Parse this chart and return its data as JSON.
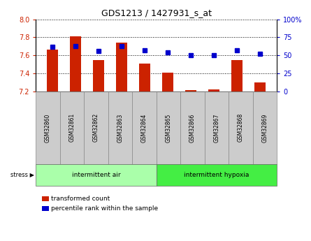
{
  "title": "GDS1213 / 1427931_s_at",
  "samples": [
    "GSM32860",
    "GSM32861",
    "GSM32862",
    "GSM32863",
    "GSM32864",
    "GSM32865",
    "GSM32866",
    "GSM32867",
    "GSM32868",
    "GSM32869"
  ],
  "transformed_count": [
    7.665,
    7.81,
    7.545,
    7.74,
    7.51,
    7.41,
    7.215,
    7.225,
    7.545,
    7.305
  ],
  "percentile_rank": [
    62,
    63,
    56,
    63,
    57,
    54,
    50,
    50,
    57,
    52
  ],
  "ylim_left": [
    7.2,
    8.0
  ],
  "ylim_right": [
    0,
    100
  ],
  "yticks_left": [
    7.2,
    7.4,
    7.6,
    7.8,
    8.0
  ],
  "yticks_right": [
    0,
    25,
    50,
    75,
    100
  ],
  "group1_label": "intermittent air",
  "group2_label": "intermittent hypoxia",
  "stress_label": "stress",
  "legend_bar_label": "transformed count",
  "legend_dot_label": "percentile rank within the sample",
  "bar_color": "#cc2200",
  "dot_color": "#0000cc",
  "bar_bottom": 7.2,
  "group1_color": "#aaffaa",
  "group2_color": "#44ee44",
  "tick_label_bg": "#cccccc",
  "n_group1": 5,
  "n_group2": 5
}
